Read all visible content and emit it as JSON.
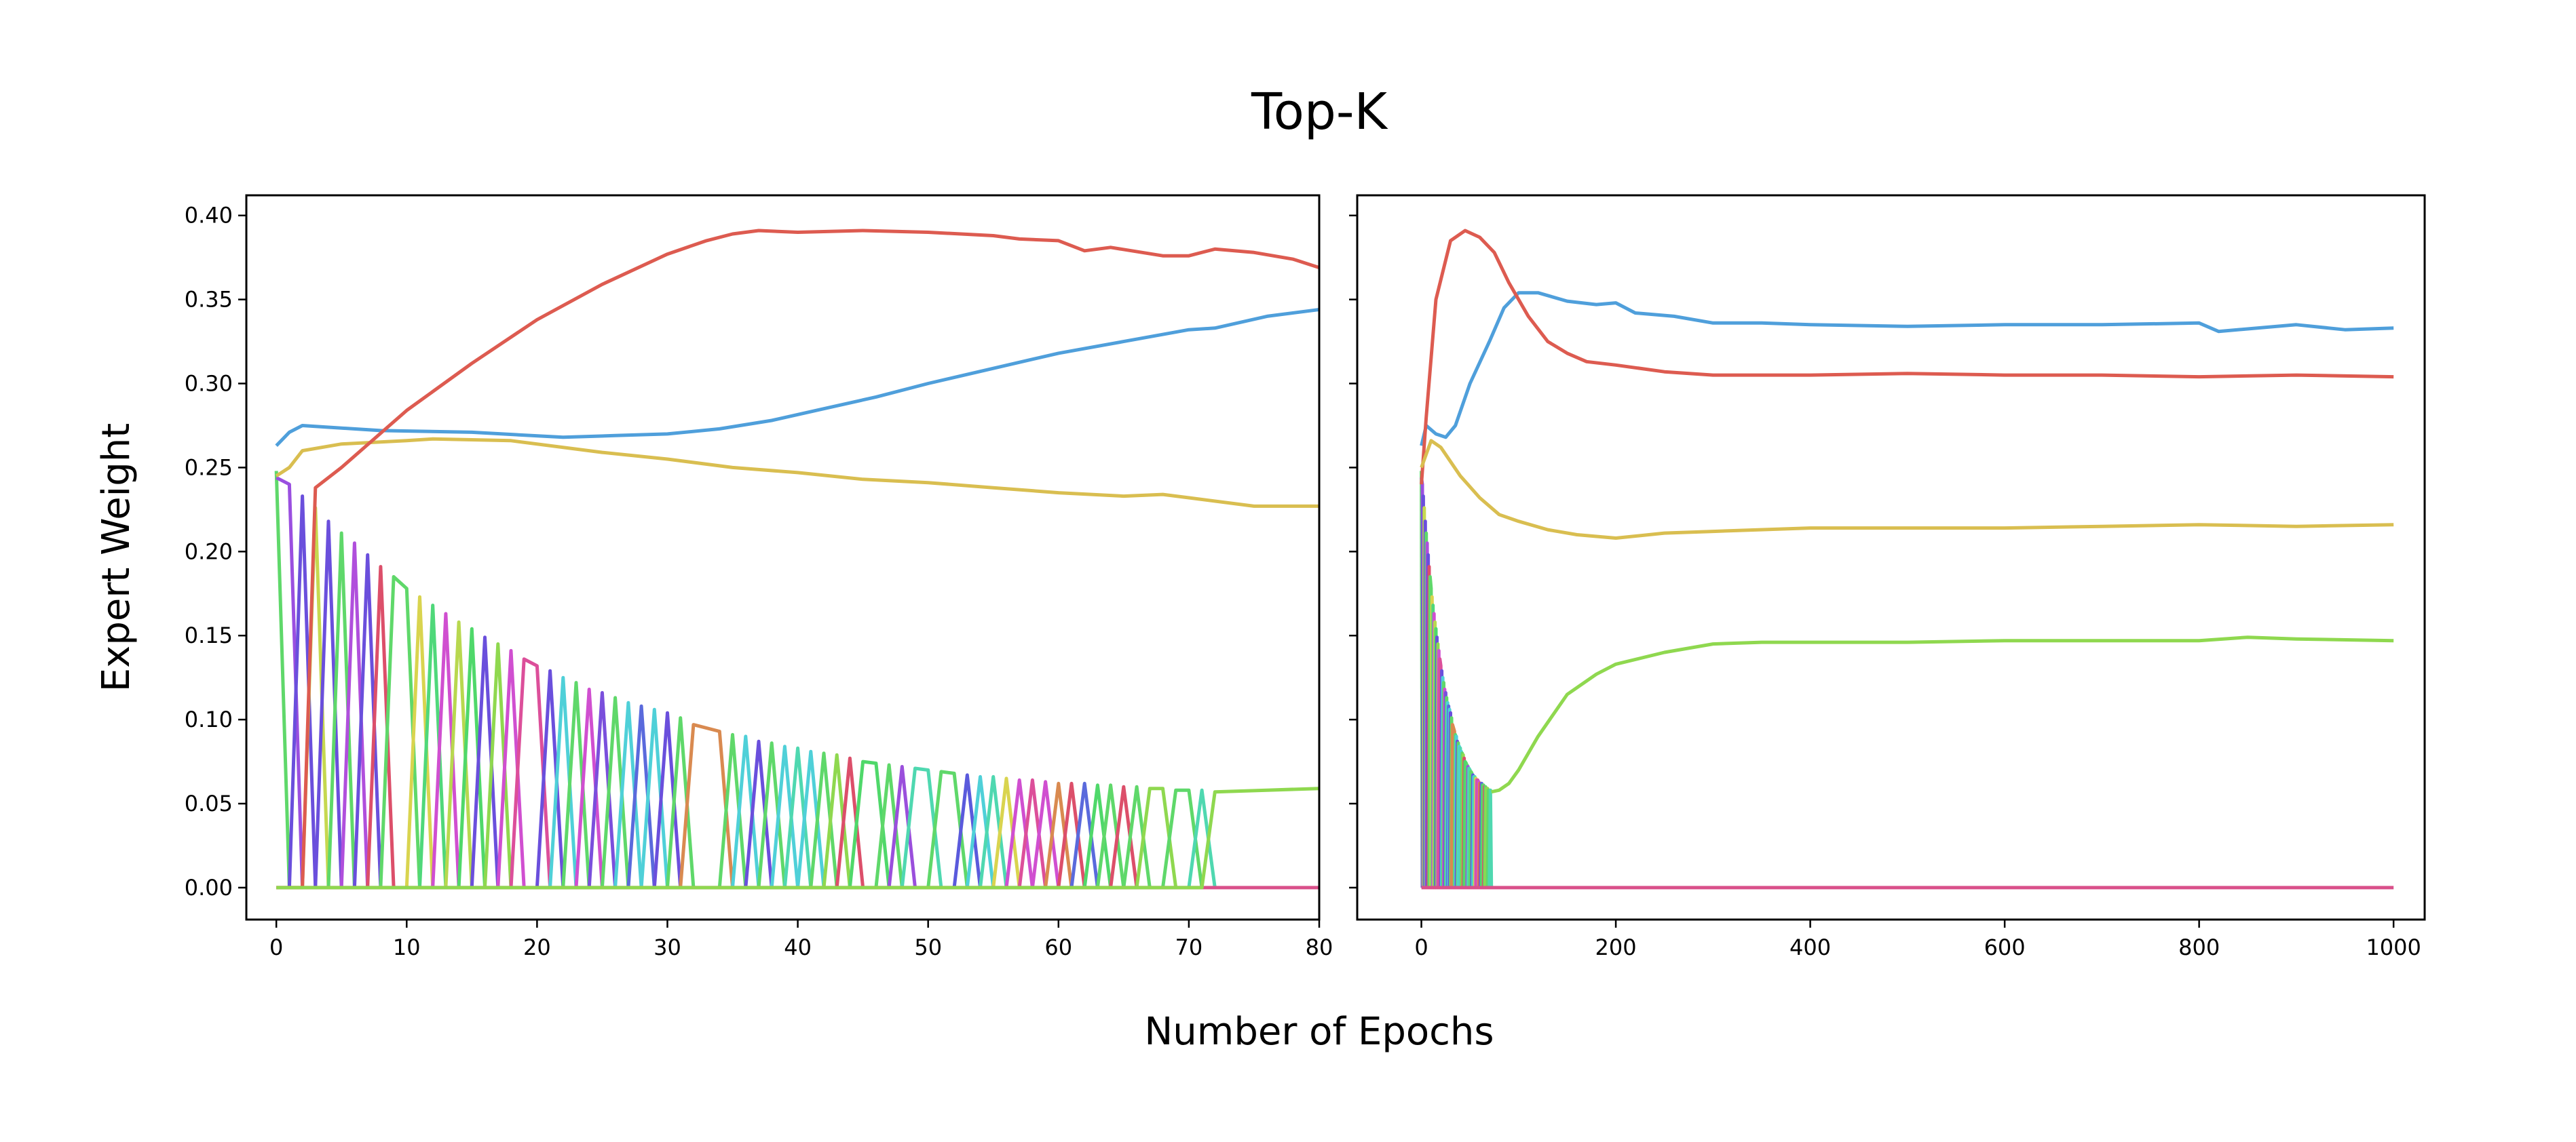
{
  "chart_data": {
    "type": "line",
    "title": "Top-K",
    "xlabel": "Number of Epochs",
    "ylabel": "Expert Weight",
    "sharey": true,
    "grid": false,
    "legend": "none",
    "colors": {
      "red": "#dd5b50",
      "blue": "#4f9fdb",
      "yellow": "#d9be50",
      "green": "#8fd84f",
      "baseline": "#d9508a"
    },
    "panels": [
      {
        "xlim": [
          -2.3,
          80
        ],
        "ylim": [
          -0.019,
          0.412
        ],
        "xticks": [
          0,
          10,
          20,
          30,
          40,
          50,
          60,
          70,
          80
        ],
        "yticks": [
          "0.00",
          "0.05",
          "0.10",
          "0.15",
          "0.20",
          "0.25",
          "0.30",
          "0.35",
          "0.40"
        ],
        "show_ytick_labels": true,
        "series": [
          {
            "color": "#4f9fdb",
            "x": [
              0,
              1,
              2,
              4,
              8,
              15,
              22,
              26,
              30,
              34,
              38,
              42,
              46,
              50,
              55,
              60,
              65,
              70,
              72,
              76,
              80
            ],
            "y": [
              0.263,
              0.271,
              0.275,
              0.274,
              0.272,
              0.271,
              0.268,
              0.269,
              0.27,
              0.273,
              0.278,
              0.285,
              0.292,
              0.3,
              0.309,
              0.318,
              0.325,
              0.332,
              0.333,
              0.34,
              0.344
            ]
          },
          {
            "color": "#d9be50",
            "x": [
              0,
              1,
              2,
              5,
              10,
              12,
              18,
              25,
              30,
              35,
              40,
              45,
              50,
              55,
              60,
              65,
              68,
              70,
              75,
              80
            ],
            "y": [
              0.245,
              0.25,
              0.26,
              0.264,
              0.266,
              0.267,
              0.266,
              0.259,
              0.255,
              0.25,
              0.247,
              0.243,
              0.241,
              0.238,
              0.235,
              0.233,
              0.234,
              0.232,
              0.227,
              0.227
            ]
          },
          {
            "color": "#dd5b50",
            "x": [
              0,
              2,
              3,
              5,
              10,
              15,
              20,
              25,
              30,
              33,
              35,
              37,
              40,
              45,
              50,
              55,
              57,
              60,
              62,
              64,
              68,
              70,
              72,
              75,
              78,
              80
            ],
            "y": [
              0,
              0,
              0.238,
              0.25,
              0.284,
              0.312,
              0.338,
              0.359,
              0.377,
              0.385,
              0.389,
              0.391,
              0.39,
              0.391,
              0.39,
              0.388,
              0.386,
              0.385,
              0.379,
              0.381,
              0.376,
              0.376,
              0.38,
              0.378,
              0.374,
              0.369
            ]
          },
          {
            "color": "#8fd84f",
            "x": [
              0,
              71,
              72,
              76,
              80
            ],
            "y": [
              0,
              0,
              0.057,
              0.058,
              0.059
            ]
          }
        ]
      },
      {
        "xlim": [
          -66,
          1032
        ],
        "ylim": [
          -0.019,
          0.412
        ],
        "xticks": [
          0,
          200,
          400,
          600,
          800,
          1000
        ],
        "yticks": [
          "0.00",
          "0.05",
          "0.10",
          "0.15",
          "0.20",
          "0.25",
          "0.30",
          "0.35",
          "0.40"
        ],
        "show_ytick_labels": false,
        "series": [
          {
            "color": "#4f9fdb",
            "x": [
              0,
              5,
              15,
              25,
              35,
              50,
              70,
              85,
              100,
              120,
              150,
              180,
              200,
              220,
              260,
              300,
              350,
              400,
              500,
              600,
              700,
              800,
              820,
              900,
              950,
              1000
            ],
            "y": [
              0.263,
              0.275,
              0.27,
              0.268,
              0.275,
              0.3,
              0.325,
              0.345,
              0.354,
              0.354,
              0.349,
              0.347,
              0.348,
              0.342,
              0.34,
              0.336,
              0.336,
              0.335,
              0.334,
              0.335,
              0.335,
              0.336,
              0.331,
              0.335,
              0.332,
              0.333
            ]
          },
          {
            "color": "#dd5b50",
            "x": [
              0,
              5,
              15,
              30,
              45,
              60,
              75,
              90,
              110,
              130,
              150,
              170,
              200,
              250,
              300,
              400,
              500,
              600,
              700,
              800,
              900,
              1000
            ],
            "y": [
              0.24,
              0.28,
              0.35,
              0.385,
              0.391,
              0.387,
              0.378,
              0.36,
              0.34,
              0.325,
              0.318,
              0.313,
              0.311,
              0.307,
              0.305,
              0.305,
              0.306,
              0.305,
              0.305,
              0.304,
              0.305,
              0.304
            ]
          },
          {
            "color": "#d9be50",
            "x": [
              0,
              10,
              20,
              40,
              60,
              80,
              100,
              130,
              160,
              200,
              250,
              300,
              400,
              500,
              600,
              700,
              800,
              900,
              1000
            ],
            "y": [
              0.25,
              0.266,
              0.262,
              0.245,
              0.232,
              0.222,
              0.218,
              0.213,
              0.21,
              0.208,
              0.211,
              0.212,
              0.214,
              0.214,
              0.214,
              0.215,
              0.216,
              0.215,
              0.216
            ]
          },
          {
            "color": "#8fd84f",
            "x": [
              72,
              80,
              90,
              100,
              120,
              150,
              180,
              200,
              250,
              300,
              350,
              400,
              500,
              600,
              700,
              800,
              850,
              900,
              1000
            ],
            "y": [
              0.057,
              0.058,
              0.062,
              0.07,
              0.09,
              0.115,
              0.127,
              0.133,
              0.14,
              0.145,
              0.146,
              0.146,
              0.146,
              0.147,
              0.147,
              0.147,
              0.149,
              0.148,
              0.147
            ]
          }
        ]
      }
    ],
    "transient_experts": [
      {
        "x": [
          0
        ],
        "y": [
          0.248
        ],
        "color": "#5fd86a"
      },
      {
        "x": [
          0,
          1
        ],
        "y": [
          0.244,
          0.24
        ],
        "color": "#9a4fe0"
      },
      {
        "x": [
          2
        ],
        "y": [
          0.233
        ],
        "color": "#6a4fdc"
      },
      {
        "x": [
          3
        ],
        "y": [
          0.226
        ],
        "color": "#c6d84f"
      },
      {
        "x": [
          4
        ],
        "y": [
          0.218
        ],
        "color": "#6a4fdc"
      },
      {
        "x": [
          5
        ],
        "y": [
          0.211
        ],
        "color": "#5fd86a"
      },
      {
        "x": [
          6
        ],
        "y": [
          0.205
        ],
        "color": "#b04fdc"
      },
      {
        "x": [
          7
        ],
        "y": [
          0.198
        ],
        "color": "#6a4fdc"
      },
      {
        "x": [
          8
        ],
        "y": [
          0.191
        ],
        "color": "#dc4f6a"
      },
      {
        "x": [
          9,
          10
        ],
        "y": [
          0.185,
          0.178
        ],
        "color": "#5fd86a"
      },
      {
        "x": [
          11
        ],
        "y": [
          0.173
        ],
        "color": "#d9d44f"
      },
      {
        "x": [
          12
        ],
        "y": [
          0.168
        ],
        "color": "#4fd87a"
      },
      {
        "x": [
          13
        ],
        "y": [
          0.163
        ],
        "color": "#d04fd0"
      },
      {
        "x": [
          14
        ],
        "y": [
          0.158
        ],
        "color": "#b8d84f"
      },
      {
        "x": [
          15
        ],
        "y": [
          0.154
        ],
        "color": "#4fd86a"
      },
      {
        "x": [
          16
        ],
        "y": [
          0.149
        ],
        "color": "#6a4fdc"
      },
      {
        "x": [
          17
        ],
        "y": [
          0.145
        ],
        "color": "#8fd84f"
      },
      {
        "x": [
          18
        ],
        "y": [
          0.141
        ],
        "color": "#d04fd0"
      },
      {
        "x": [
          19,
          20
        ],
        "y": [
          0.136,
          0.132
        ],
        "color": "#dc4f9a"
      },
      {
        "x": [
          21
        ],
        "y": [
          0.129
        ],
        "color": "#6a4fdc"
      },
      {
        "x": [
          22
        ],
        "y": [
          0.125
        ],
        "color": "#4fd0d8"
      },
      {
        "x": [
          23
        ],
        "y": [
          0.122
        ],
        "color": "#5fd86a"
      },
      {
        "x": [
          24
        ],
        "y": [
          0.118
        ],
        "color": "#d04fd0"
      },
      {
        "x": [
          25
        ],
        "y": [
          0.116
        ],
        "color": "#7a4fdc"
      },
      {
        "x": [
          26
        ],
        "y": [
          0.113
        ],
        "color": "#5fd86a"
      },
      {
        "x": [
          27
        ],
        "y": [
          0.11
        ],
        "color": "#4fd0d8"
      },
      {
        "x": [
          28
        ],
        "y": [
          0.108
        ],
        "color": "#5a6adc"
      },
      {
        "x": [
          29
        ],
        "y": [
          0.106
        ],
        "color": "#4fd0d8"
      },
      {
        "x": [
          30
        ],
        "y": [
          0.104
        ],
        "color": "#6a4fdc"
      },
      {
        "x": [
          31
        ],
        "y": [
          0.101
        ],
        "color": "#5fd86a"
      },
      {
        "x": [
          32,
          34
        ],
        "y": [
          0.097,
          0.093
        ],
        "color": "#d98a50"
      },
      {
        "x": [
          35
        ],
        "y": [
          0.091
        ],
        "color": "#5fd86a"
      },
      {
        "x": [
          36
        ],
        "y": [
          0.09
        ],
        "color": "#4fd0d8"
      },
      {
        "x": [
          37
        ],
        "y": [
          0.087
        ],
        "color": "#6a4fdc"
      },
      {
        "x": [
          38
        ],
        "y": [
          0.086
        ],
        "color": "#5fd86a"
      },
      {
        "x": [
          39
        ],
        "y": [
          0.084
        ],
        "color": "#4fd0d8"
      },
      {
        "x": [
          40
        ],
        "y": [
          0.083
        ],
        "color": "#4fd8b0"
      },
      {
        "x": [
          41
        ],
        "y": [
          0.081
        ],
        "color": "#4fd0d8"
      },
      {
        "x": [
          42
        ],
        "y": [
          0.08
        ],
        "color": "#5fd86a"
      },
      {
        "x": [
          43
        ],
        "y": [
          0.079
        ],
        "color": "#8fd84f"
      },
      {
        "x": [
          44
        ],
        "y": [
          0.077
        ],
        "color": "#dc4f6a"
      },
      {
        "x": [
          45,
          46
        ],
        "y": [
          0.075,
          0.074
        ],
        "color": "#4fd86a"
      },
      {
        "x": [
          47
        ],
        "y": [
          0.073
        ],
        "color": "#5fd86a"
      },
      {
        "x": [
          48
        ],
        "y": [
          0.072
        ],
        "color": "#9a4fdc"
      },
      {
        "x": [
          49,
          50
        ],
        "y": [
          0.071,
          0.07
        ],
        "color": "#4fd8b0"
      },
      {
        "x": [
          51,
          52
        ],
        "y": [
          0.069,
          0.068
        ],
        "color": "#5fd86a"
      },
      {
        "x": [
          53
        ],
        "y": [
          0.067
        ],
        "color": "#5a5adc"
      },
      {
        "x": [
          54
        ],
        "y": [
          0.066
        ],
        "color": "#4fd0d8"
      },
      {
        "x": [
          55
        ],
        "y": [
          0.066
        ],
        "color": "#4fd8b0"
      },
      {
        "x": [
          56
        ],
        "y": [
          0.065
        ],
        "color": "#d9d44f"
      },
      {
        "x": [
          57
        ],
        "y": [
          0.064
        ],
        "color": "#d04fd0"
      },
      {
        "x": [
          58
        ],
        "y": [
          0.064
        ],
        "color": "#dc4f9a"
      },
      {
        "x": [
          59
        ],
        "y": [
          0.063
        ],
        "color": "#d04fd0"
      },
      {
        "x": [
          60
        ],
        "y": [
          0.062
        ],
        "color": "#d98a50"
      },
      {
        "x": [
          61
        ],
        "y": [
          0.062
        ],
        "color": "#dc4f6a"
      },
      {
        "x": [
          62
        ],
        "y": [
          0.062
        ],
        "color": "#5a6adc"
      },
      {
        "x": [
          63
        ],
        "y": [
          0.061
        ],
        "color": "#4fd86a"
      },
      {
        "x": [
          64
        ],
        "y": [
          0.061
        ],
        "color": "#5fd86a"
      },
      {
        "x": [
          65
        ],
        "y": [
          0.06
        ],
        "color": "#dc4f6a"
      },
      {
        "x": [
          66
        ],
        "y": [
          0.06
        ],
        "color": "#5fd86a"
      },
      {
        "x": [
          67,
          68
        ],
        "y": [
          0.059,
          0.059
        ],
        "color": "#8fd84f"
      },
      {
        "x": [
          69,
          70
        ],
        "y": [
          0.058,
          0.058
        ],
        "color": "#5fd86a"
      },
      {
        "x": [
          71
        ],
        "y": [
          0.058
        ],
        "color": "#4fd8b0"
      }
    ]
  }
}
